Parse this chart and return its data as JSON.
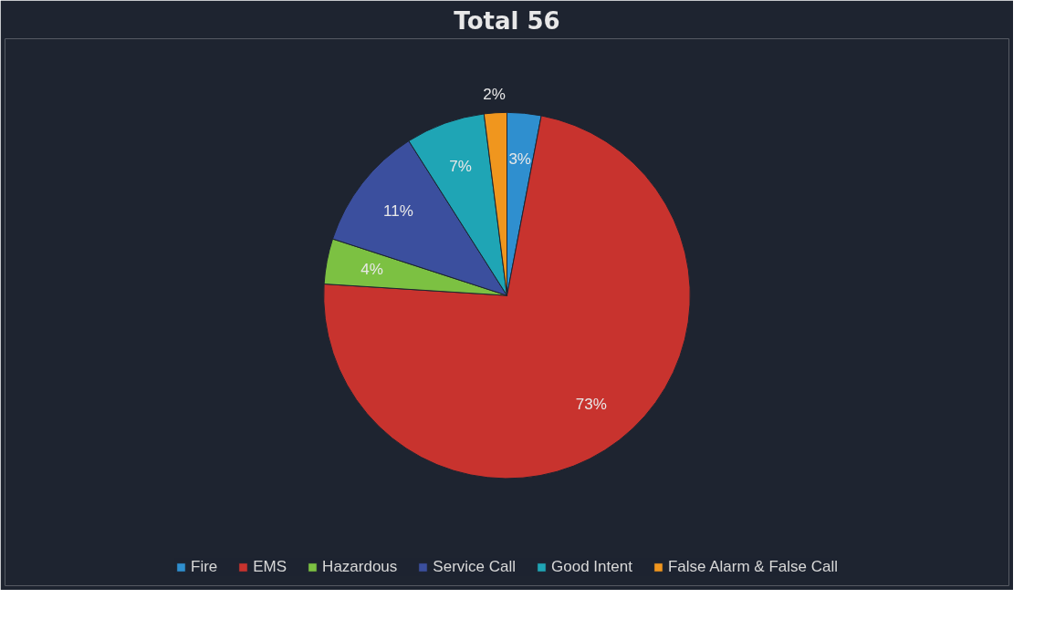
{
  "chart_data": {
    "type": "pie",
    "title": "Total 56",
    "categories": [
      "Fire",
      "EMS",
      "Hazardous",
      "Service Call",
      "Good Intent",
      "False Alarm & False Call"
    ],
    "values": [
      3,
      73,
      4,
      11,
      7,
      2
    ],
    "value_labels": [
      "3%",
      "73%",
      "4%",
      "11%",
      "7%",
      "2%"
    ],
    "colors": [
      "#2f8fcf",
      "#c8332e",
      "#7cc142",
      "#3b4f9e",
      "#1fa5b5",
      "#f0961e"
    ],
    "legend": "bottom"
  }
}
